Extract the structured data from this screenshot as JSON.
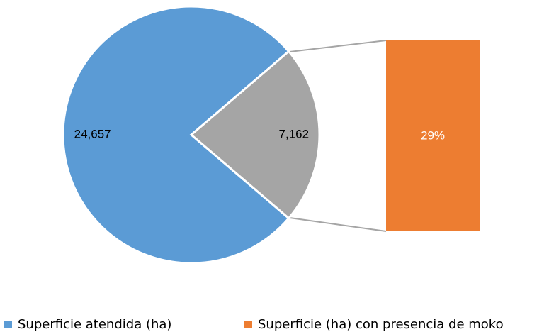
{
  "chart_data": {
    "type": "pie",
    "series": [
      {
        "name": "Superficie atendida (ha)",
        "color": "#5b9bd5",
        "values": [
          24657,
          7162
        ],
        "value_labels": [
          "24,657",
          "7,162"
        ],
        "colors": [
          "#5b9bd5",
          "#a5a5a5"
        ]
      },
      {
        "name": "Superficie (ha) con presencia de moko",
        "color": "#ed7d31",
        "values": [
          29
        ],
        "value_labels": [
          "29%"
        ]
      }
    ]
  }
}
